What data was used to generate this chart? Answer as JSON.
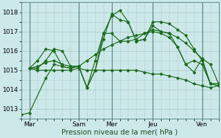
{
  "xlabel": "Pression niveau de la mer( hPa )",
  "bg_color": "#cce8e8",
  "grid_color": "#aacccc",
  "line_color": "#1a6b1a",
  "day_line_color": "#558888",
  "xlim": [
    0,
    120
  ],
  "ylim": [
    1012.5,
    1018.5
  ],
  "yticks": [
    1013,
    1014,
    1015,
    1016,
    1017,
    1018
  ],
  "xtick_positions": [
    5,
    35,
    55,
    80,
    110
  ],
  "xtick_labels": [
    "Mar",
    "Sam",
    "Mer",
    "Jeu",
    "Ven"
  ],
  "vline_positions": [
    5,
    35,
    55,
    80,
    110
  ],
  "minor_xtick_step": 5,
  "minor_ytick_step": 0.2,
  "series": [
    {
      "x": [
        0,
        5,
        15,
        20,
        25,
        30,
        35,
        40,
        45,
        50,
        55,
        60,
        65,
        70,
        75,
        80,
        85,
        90,
        95,
        100,
        105,
        110,
        115,
        120
      ],
      "y": [
        1012.7,
        1012.8,
        1014.6,
        1015.3,
        1015.2,
        1015.1,
        1015.2,
        1014.1,
        1015.0,
        1016.9,
        1017.8,
        1018.1,
        1017.5,
        1016.5,
        1016.6,
        1017.3,
        1017.0,
        1016.9,
        1016.2,
        1015.3,
        1014.9,
        1015.6,
        1014.3,
        1014.2
      ]
    },
    {
      "x": [
        5,
        10,
        15,
        20,
        25,
        30,
        35,
        40,
        45,
        50,
        55,
        60,
        65,
        70,
        75,
        80,
        85,
        90,
        95,
        100,
        105,
        110,
        115,
        120
      ],
      "y": [
        1015.1,
        1015.5,
        1016.1,
        1016.0,
        1015.2,
        1015.1,
        1015.2,
        1014.1,
        1015.0,
        1016.6,
        1017.9,
        1017.6,
        1017.5,
        1016.5,
        1016.6,
        1017.5,
        1017.5,
        1017.4,
        1017.1,
        1016.8,
        1016.1,
        1015.5,
        1014.3,
        1014.3
      ]
    },
    {
      "x": [
        5,
        10,
        15,
        20,
        25,
        30,
        35,
        40,
        45,
        50,
        55,
        60,
        65,
        70,
        75,
        80,
        85,
        90,
        95,
        100,
        105,
        110,
        115,
        120
      ],
      "y": [
        1015.1,
        1015.1,
        1015.5,
        1016.1,
        1016.0,
        1015.2,
        1015.2,
        1014.1,
        1015.5,
        1016.9,
        1016.9,
        1016.5,
        1016.5,
        1016.6,
        1016.9,
        1017.0,
        1016.9,
        1016.7,
        1016.2,
        1015.3,
        1015.5,
        1015.3,
        1014.3,
        1014.3
      ]
    },
    {
      "x": [
        5,
        10,
        15,
        20,
        25,
        30,
        35,
        40,
        45,
        50,
        55,
        60,
        65,
        70,
        75,
        80,
        85,
        90,
        95,
        100,
        105,
        110,
        115,
        120
      ],
      "y": [
        1015.1,
        1015.2,
        1015.4,
        1015.5,
        1015.3,
        1015.2,
        1015.2,
        1015.5,
        1015.8,
        1016.1,
        1016.3,
        1016.5,
        1016.7,
        1016.8,
        1016.9,
        1017.1,
        1017.0,
        1016.9,
        1016.7,
        1016.4,
        1016.0,
        1015.6,
        1015.3,
        1014.3
      ]
    },
    {
      "x": [
        5,
        10,
        15,
        20,
        25,
        30,
        35,
        40,
        45,
        50,
        55,
        60,
        65,
        70,
        75,
        80,
        85,
        90,
        95,
        100,
        105,
        110,
        115,
        120
      ],
      "y": [
        1015.1,
        1015.0,
        1015.0,
        1015.0,
        1015.0,
        1015.0,
        1015.1,
        1015.0,
        1015.0,
        1015.0,
        1015.0,
        1015.0,
        1015.0,
        1015.0,
        1014.9,
        1014.8,
        1014.8,
        1014.7,
        1014.6,
        1014.5,
        1014.3,
        1014.2,
        1014.1,
        1014.2
      ]
    }
  ]
}
